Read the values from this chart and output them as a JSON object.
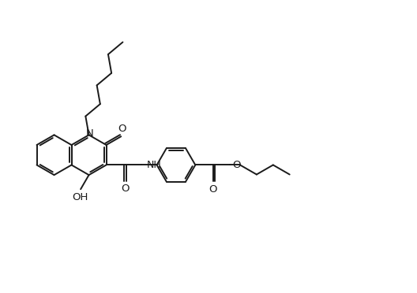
{
  "bg_color": "#ffffff",
  "line_color": "#1a1a1a",
  "line_width": 1.4,
  "font_size": 9.5,
  "fig_width": 5.28,
  "fig_height": 3.72,
  "dpi": 100,
  "xlim": [
    0,
    10.5
  ],
  "ylim": [
    0,
    7.5
  ]
}
